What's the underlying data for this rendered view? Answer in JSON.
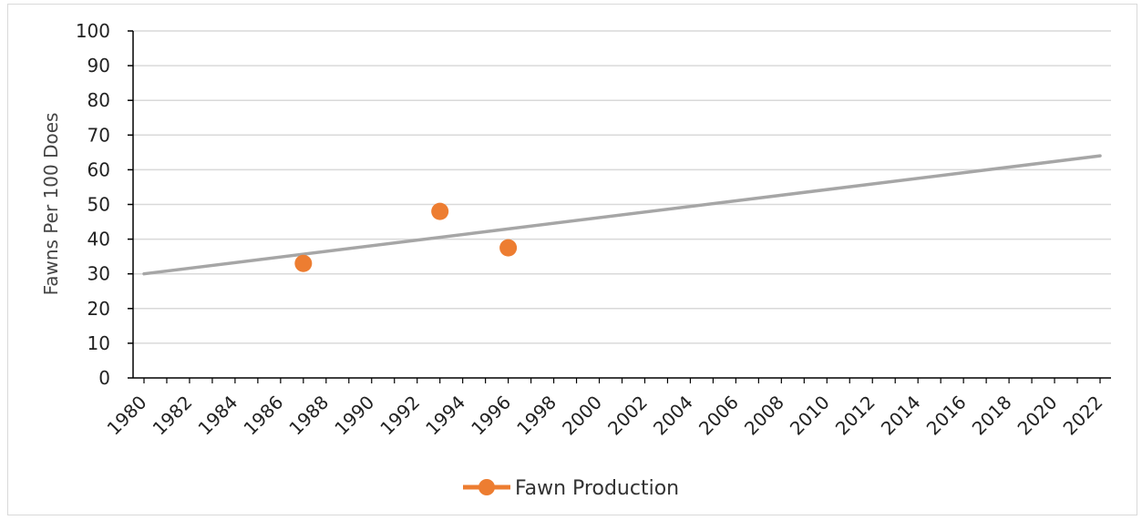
{
  "chart_data": {
    "type": "scatter",
    "ylabel": "Fawns Per 100 Does",
    "xlabel": "",
    "xlim": [
      1980,
      2022
    ],
    "ylim": [
      0,
      100
    ],
    "y_ticks": [
      0,
      10,
      20,
      30,
      40,
      50,
      60,
      70,
      80,
      90,
      100
    ],
    "x_ticks": [
      1980,
      1982,
      1984,
      1986,
      1988,
      1990,
      1992,
      1994,
      1996,
      1998,
      2000,
      2002,
      2004,
      2006,
      2008,
      2010,
      2012,
      2014,
      2016,
      2018,
      2020,
      2022
    ],
    "grid": true,
    "legend_position": "bottom",
    "series": [
      {
        "name": "Fawn Production",
        "color": "#ed7d31",
        "marker": "circle",
        "points": [
          {
            "x": 1987,
            "y": 33
          },
          {
            "x": 1993,
            "y": 48
          },
          {
            "x": 1996,
            "y": 37.5
          }
        ]
      }
    ],
    "trendline": {
      "color": "#a6a6a6",
      "start": {
        "x": 1980,
        "y": 30
      },
      "end": {
        "x": 2022,
        "y": 64
      }
    },
    "colors": {
      "gridline": "#d9d9d9",
      "axis": "#000000"
    }
  }
}
